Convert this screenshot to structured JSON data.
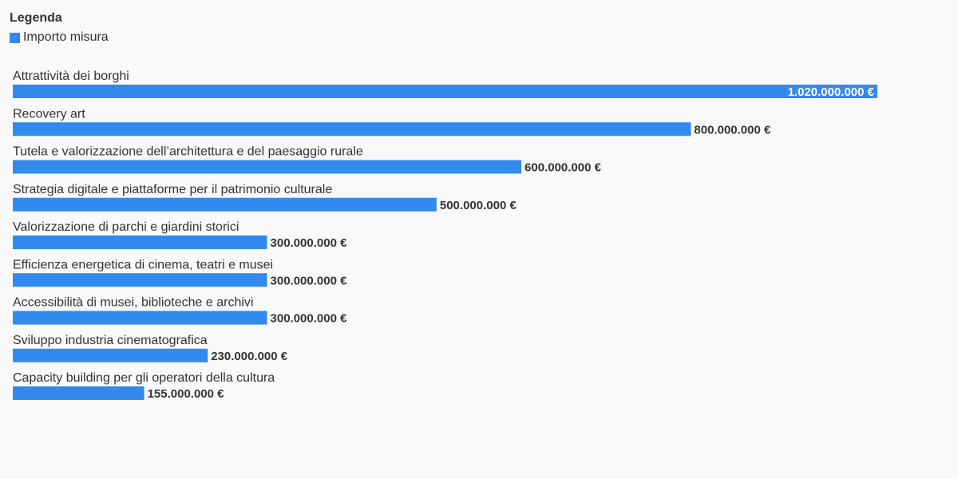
{
  "legend": {
    "title": "Legenda",
    "series_label": "Importo misura"
  },
  "colors": {
    "bar": "#3289ee",
    "label_dark": "#333333",
    "label_inside": "#ffffff",
    "background": "#f9f9f9"
  },
  "chart_data": {
    "type": "bar",
    "orientation": "horizontal",
    "categories": [
      "Attrattività dei borghi",
      "Recovery art",
      "Tutela e valorizzazione dell’architettura e del paesaggio rurale",
      "Strategia digitale e piattaforme per il patrimonio culturale",
      "Valorizzazione di parchi e giardini storici",
      "Efficienza energetica di cinema, teatri e musei",
      "Accessibilità di musei, biblioteche e archivi",
      "Sviluppo industria cinematografica",
      "Capacity building per gli operatori della cultura"
    ],
    "series": [
      {
        "name": "Importo misura",
        "values": [
          1020000000,
          800000000,
          600000000,
          500000000,
          300000000,
          300000000,
          300000000,
          230000000,
          155000000
        ]
      }
    ],
    "value_labels": [
      "1.020.000.000 €",
      "800.000.000 €",
      "600.000.000 €",
      "500.000.000 €",
      "300.000.000 €",
      "300.000.000 €",
      "300.000.000 €",
      "230.000.000 €",
      "155.000.000 €"
    ],
    "xlim": [
      0,
      1020000000
    ],
    "grid": false,
    "legend_position": "top-left"
  }
}
